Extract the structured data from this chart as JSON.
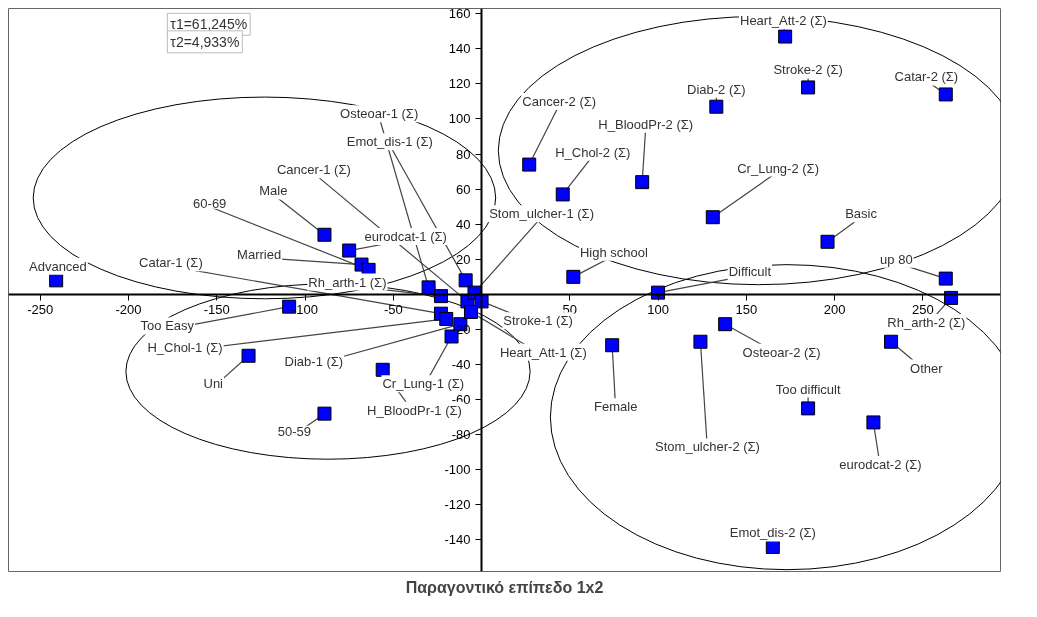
{
  "chart_data": {
    "type": "scatter",
    "title": "Παραγοντικό επίπεδο 1x2",
    "marker": "square",
    "grid": false,
    "xlim": [
      -268,
      294
    ],
    "ylim": [
      -158,
      163
    ],
    "xticks": [
      -250,
      -200,
      -150,
      -100,
      -50,
      50,
      100,
      150,
      200,
      250
    ],
    "yticks": [
      -140,
      -120,
      -100,
      -80,
      -60,
      -40,
      -20,
      20,
      40,
      60,
      80,
      100,
      120,
      140,
      160
    ],
    "series": [
      {
        "color": "#0000ff",
        "x": [
          -241,
          -23,
          -68,
          -64,
          -89,
          -75,
          -8,
          -30,
          -9,
          -4,
          -23,
          -109,
          -20,
          -12,
          -132,
          -17,
          -56,
          -89,
          0,
          -6,
          172,
          185,
          263,
          133,
          27,
          91,
          46,
          131,
          196,
          52,
          263,
          100,
          266,
          138,
          74,
          124,
          232,
          185,
          222,
          165
        ],
        "values": [
          8,
          -11,
          17,
          14,
          34,
          25,
          -4,
          4,
          8,
          1,
          -1,
          -7,
          -14,
          -17,
          -35,
          -24,
          -43,
          -68,
          -4,
          -10,
          147,
          118,
          114,
          107,
          74,
          64,
          57,
          44,
          30,
          10,
          9,
          1,
          -2,
          -17,
          -29,
          -27,
          -27,
          -65,
          -73,
          -144
        ]
      }
    ],
    "annotations": [
      "τ1=61,245%",
      "τ2=4,933%",
      {
        "text": "Advanced",
        "x": -241,
        "y": 8
      },
      {
        "text": "Catar-1 (Σ)",
        "x": -23,
        "y": -11
      },
      {
        "text": "Married",
        "x": -68,
        "y": 17
      },
      {
        "text": "60-69",
        "x": -64,
        "y": 14
      },
      {
        "text": "Male",
        "x": -89,
        "y": 34
      },
      {
        "text": "eurodcat-1 (Σ)",
        "x": -75,
        "y": 25
      },
      {
        "text": "Cancer-1 (Σ)",
        "x": -8,
        "y": -4
      },
      {
        "text": "Osteoar-1 (Σ)",
        "x": -30,
        "y": 4
      },
      {
        "text": "Emot_dis-1 (Σ)",
        "x": -9,
        "y": 8
      },
      {
        "text": "Stom_ulcher-1 (Σ)",
        "x": -4,
        "y": 1
      },
      {
        "text": "Rh_arth-1 (Σ)",
        "x": -23,
        "y": -1
      },
      {
        "text": "Too Easy",
        "x": -109,
        "y": -7
      },
      {
        "text": "H_Chol-1 (Σ)",
        "x": -20,
        "y": -14
      },
      {
        "text": "Diab-1 (Σ)",
        "x": -12,
        "y": -17
      },
      {
        "text": "Uni",
        "x": -132,
        "y": -35
      },
      {
        "text": "Cr_Lung-1 (Σ)",
        "x": -17,
        "y": -24
      },
      {
        "text": "H_BloodPr-1 (Σ)",
        "x": -56,
        "y": -43
      },
      {
        "text": "50-59",
        "x": -89,
        "y": -68
      },
      {
        "text": "Stroke-1 (Σ)",
        "x": 0,
        "y": -4
      },
      {
        "text": "Heart_Att-1 (Σ)",
        "x": -6,
        "y": -10
      },
      {
        "text": "Heart_Att-2 (Σ)",
        "x": 172,
        "y": 147
      },
      {
        "text": "Stroke-2 (Σ)",
        "x": 185,
        "y": 118
      },
      {
        "text": "Catar-2 (Σ)",
        "x": 263,
        "y": 114
      },
      {
        "text": "Diab-2 (Σ)",
        "x": 133,
        "y": 107
      },
      {
        "text": "Cancer-2 (Σ)",
        "x": 27,
        "y": 74
      },
      {
        "text": "H_BloodPr-2 (Σ)",
        "x": 91,
        "y": 64
      },
      {
        "text": "H_Chol-2 (Σ)",
        "x": 46,
        "y": 57
      },
      {
        "text": "Cr_Lung-2 (Σ)",
        "x": 131,
        "y": 44
      },
      {
        "text": "Basic",
        "x": 196,
        "y": 30
      },
      {
        "text": "High school",
        "x": 52,
        "y": 10
      },
      {
        "text": "up 80",
        "x": 263,
        "y": 9
      },
      {
        "text": "Difficult",
        "x": 100,
        "y": 1
      },
      {
        "text": "Rh_arth-2 (Σ)",
        "x": 266,
        "y": -2
      },
      {
        "text": "Osteoar-2 (Σ)",
        "x": 138,
        "y": -17
      },
      {
        "text": "Female",
        "x": 74,
        "y": -29
      },
      {
        "text": "Stom_ulcher-2 (Σ)",
        "x": 124,
        "y": -27
      },
      {
        "text": "Other",
        "x": 232,
        "y": -27
      },
      {
        "text": "Too difficult",
        "x": 185,
        "y": -65
      },
      {
        "text": "eurodcat-2 (Σ)",
        "x": 222,
        "y": -73
      },
      {
        "text": "Emot_dis-2 (Σ)",
        "x": 165,
        "y": -144
      }
    ]
  }
}
